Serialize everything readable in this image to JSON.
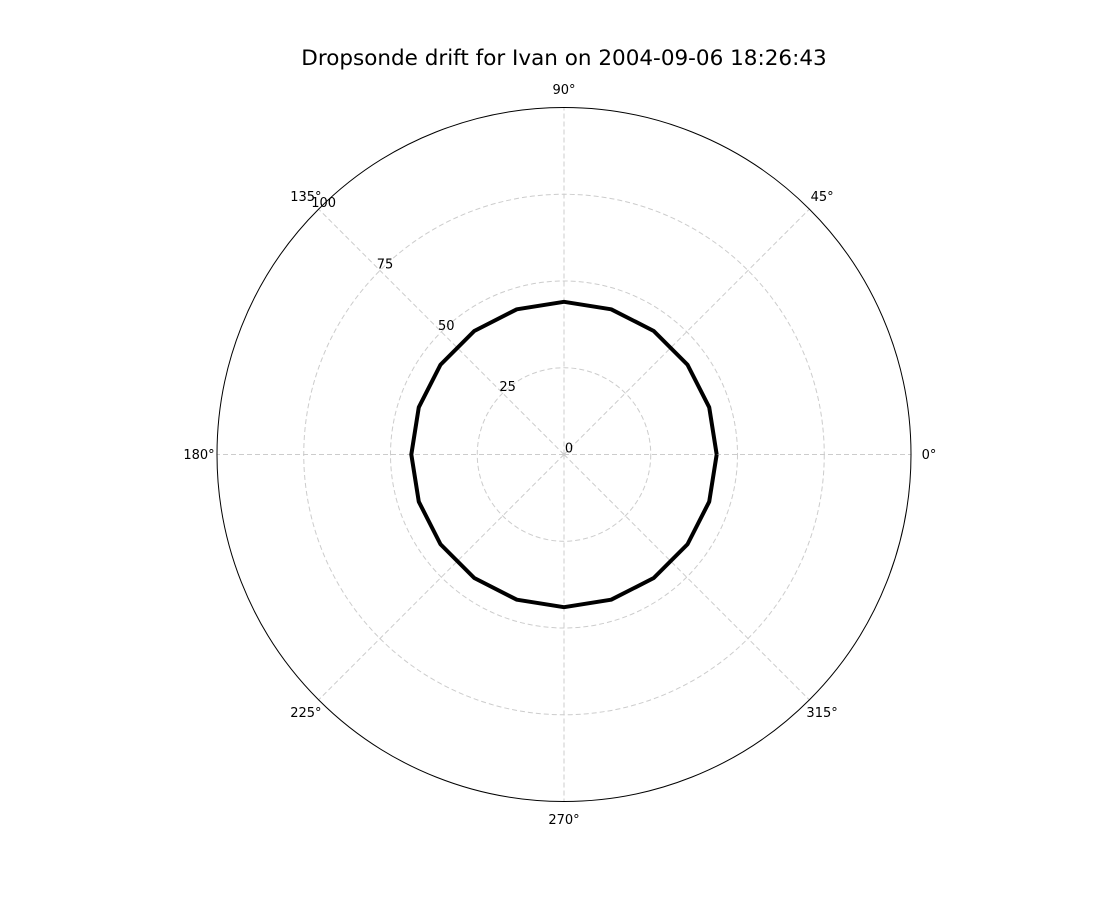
{
  "chart_data": {
    "type": "line",
    "projection": "polar",
    "title": "Dropsonde drift for Ivan on 2004-09-06 18:26:43",
    "r_ticks": [
      0,
      25,
      50,
      75,
      100
    ],
    "r_tick_labels": [
      "0",
      "25",
      "50",
      "75",
      "100"
    ],
    "rlim": [
      0,
      100
    ],
    "theta_ticks_deg": [
      0,
      45,
      90,
      135,
      180,
      225,
      270,
      315
    ],
    "theta_tick_labels": [
      "0°",
      "45°",
      "90°",
      "135°",
      "180°",
      "225°",
      "270°",
      "315°"
    ],
    "grid": true,
    "series": [
      {
        "color": "#000000",
        "theta_deg": [
          0,
          18,
          36,
          54,
          72,
          90,
          108,
          126,
          144,
          162,
          180,
          198,
          216,
          234,
          252,
          270,
          288,
          306,
          324,
          342,
          360
        ],
        "r": [
          44,
          44,
          44,
          44,
          44,
          44,
          44,
          44,
          44,
          44,
          44,
          44,
          44,
          44,
          44,
          44,
          44,
          44,
          44,
          44,
          44
        ]
      }
    ]
  }
}
